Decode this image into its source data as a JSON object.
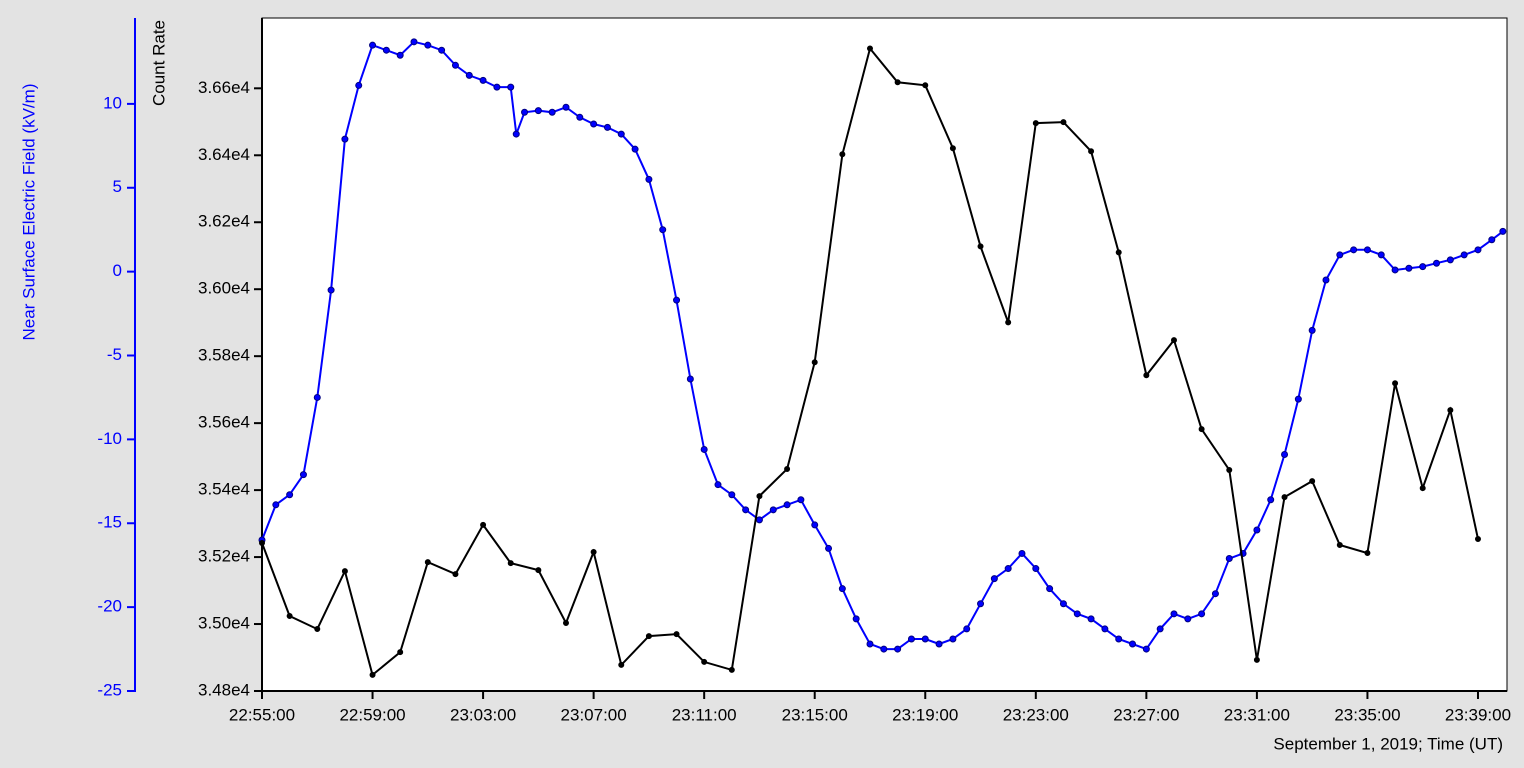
{
  "chart_data": {
    "type": "line",
    "xlabel": "September 1, 2019; Time (UT)",
    "ylabel": "Near Surface Electric Field (kV/m)",
    "y2label": "Count Rate",
    "xlim": [
      "22:55:00",
      "23:40:03"
    ],
    "xticks": [
      "22:55:00",
      "22:59:00",
      "23:03:00",
      "23:07:00",
      "23:11:00",
      "23:15:00",
      "23:19:00",
      "23:23:00",
      "23:27:00",
      "23:31:00",
      "23:35:00",
      "23:39:00"
    ],
    "ylim": [
      -25,
      15.12
    ],
    "yticks": [
      -25,
      -20,
      -15,
      -10,
      -5,
      0,
      5,
      10
    ],
    "y2lim": [
      34800,
      36810
    ],
    "y2ticks": [
      {
        "value": 34800,
        "label": "3.48e4"
      },
      {
        "value": 35000,
        "label": "3.50e4"
      },
      {
        "value": 35200,
        "label": "3.52e4"
      },
      {
        "value": 35400,
        "label": "3.54e4"
      },
      {
        "value": 35600,
        "label": "3.56e4"
      },
      {
        "value": 35800,
        "label": "3.58e4"
      },
      {
        "value": 36000,
        "label": "3.60e4"
      },
      {
        "value": 36200,
        "label": "3.62e4"
      },
      {
        "value": 36400,
        "label": "3.64e4"
      },
      {
        "value": 36600,
        "label": "3.66e4"
      }
    ],
    "ycolor": "#0000ff",
    "series": [
      {
        "color": "#0000ff",
        "axis": "y",
        "x": [
          "22:55:00",
          "22:55:30",
          "22:56:00",
          "22:56:30",
          "22:57:00",
          "22:57:30",
          "22:58:00",
          "22:58:30",
          "22:59:00",
          "22:59:30",
          "23:00:00",
          "23:00:30",
          "23:01:00",
          "23:01:30",
          "23:02:00",
          "23:02:30",
          "23:03:00",
          "23:03:30",
          "23:04:00",
          "23:04:12",
          "23:04:30",
          "23:05:00",
          "23:05:30",
          "23:06:00",
          "23:06:30",
          "23:07:00",
          "23:07:30",
          "23:08:00",
          "23:08:30",
          "23:09:00",
          "23:09:30",
          "23:10:00",
          "23:10:30",
          "23:11:00",
          "23:11:30",
          "23:12:00",
          "23:12:30",
          "23:13:00",
          "23:13:30",
          "23:14:00",
          "23:14:30",
          "23:15:00",
          "23:15:30",
          "23:16:00",
          "23:16:30",
          "23:17:00",
          "23:17:30",
          "23:18:00",
          "23:18:30",
          "23:19:00",
          "23:19:30",
          "23:20:00",
          "23:20:30",
          "23:21:00",
          "23:21:30",
          "23:22:00",
          "23:22:30",
          "23:23:00",
          "23:23:30",
          "23:24:00",
          "23:24:30",
          "23:25:00",
          "23:25:30",
          "23:26:00",
          "23:26:30",
          "23:27:00",
          "23:27:30",
          "23:28:00",
          "23:28:30",
          "23:29:00",
          "23:29:30",
          "23:30:00",
          "23:30:30",
          "23:31:00",
          "23:31:30",
          "23:32:00",
          "23:32:30",
          "23:33:00",
          "23:33:30",
          "23:34:00",
          "23:34:30",
          "23:35:00",
          "23:35:30",
          "23:36:00",
          "23:36:30",
          "23:37:00",
          "23:37:30",
          "23:38:00",
          "23:38:30",
          "23:39:00",
          "23:39:30",
          "23:39:54"
        ],
        "values": [
          -16,
          -13.9,
          -13.3,
          -12.1,
          -7.5,
          -1.1,
          7.9,
          11.1,
          13.5,
          13.2,
          12.9,
          13.7,
          13.5,
          13.2,
          12.3,
          11.7,
          11.4,
          11.0,
          11.0,
          8.2,
          9.5,
          9.6,
          9.5,
          9.8,
          9.2,
          8.8,
          8.6,
          8.2,
          7.3,
          5.5,
          2.5,
          -1.7,
          -6.4,
          -10.6,
          -12.7,
          -13.3,
          -14.2,
          -14.8,
          -14.2,
          -13.9,
          -13.6,
          -15.1,
          -16.5,
          -18.9,
          -20.7,
          -22.2,
          -22.5,
          -22.5,
          -21.9,
          -21.9,
          -22.2,
          -21.9,
          -21.3,
          -19.8,
          -18.3,
          -17.7,
          -16.8,
          -17.7,
          -18.9,
          -19.8,
          -20.4,
          -20.7,
          -21.3,
          -21.9,
          -22.2,
          -22.5,
          -21.3,
          -20.4,
          -20.7,
          -20.4,
          -19.2,
          -17.1,
          -16.8,
          -15.4,
          -13.6,
          -10.9,
          -7.6,
          -3.5,
          -0.5,
          1.0,
          1.3,
          1.3,
          1.0,
          0.1,
          0.2,
          0.3,
          0.5,
          0.7,
          1.0,
          1.3,
          1.9,
          2.4
        ]
      },
      {
        "color": "#000000",
        "axis": "y2",
        "x": [
          "22:55:00",
          "22:56:00",
          "22:57:00",
          "22:58:00",
          "22:59:00",
          "23:00:00",
          "23:01:00",
          "23:02:00",
          "23:03:00",
          "23:04:00",
          "23:05:00",
          "23:06:00",
          "23:07:00",
          "23:08:00",
          "23:09:00",
          "23:10:00",
          "23:11:00",
          "23:12:00",
          "23:13:00",
          "23:14:00",
          "23:15:00",
          "23:16:00",
          "23:17:00",
          "23:18:00",
          "23:19:00",
          "23:20:00",
          "23:21:00",
          "23:22:00",
          "23:23:00",
          "23:24:00",
          "23:25:00",
          "23:26:00",
          "23:27:00",
          "23:28:00",
          "23:29:00",
          "23:30:00",
          "23:31:00",
          "23:32:00",
          "23:33:00",
          "23:34:00",
          "23:35:00",
          "23:36:00",
          "23:37:00",
          "23:38:00",
          "23:39:00"
        ],
        "values": [
          35242,
          35024,
          34985,
          35158,
          34848,
          34916,
          35185,
          35149,
          35296,
          35182,
          35161,
          35003,
          35215,
          34878,
          34964,
          34970,
          34887,
          34863,
          35382,
          35463,
          35782,
          36403,
          36719,
          36618,
          36609,
          36421,
          36128,
          35901,
          36496,
          36499,
          36412,
          36110,
          35743,
          35848,
          35582,
          35460,
          34893,
          35379,
          35427,
          35236,
          35212,
          35719,
          35406,
          35639,
          35254
        ]
      }
    ]
  }
}
